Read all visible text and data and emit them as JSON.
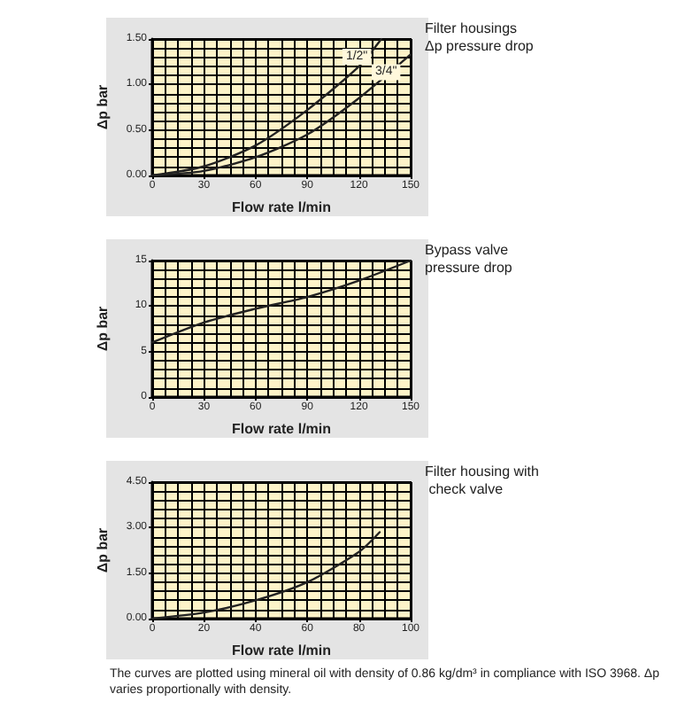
{
  "chart_data": [
    {
      "type": "line",
      "title": "Filter housings Δp pressure drop",
      "xlabel": "Flow rate l/min",
      "ylabel": "Δp bar",
      "x": [
        0,
        30,
        60,
        90,
        120,
        150
      ],
      "xlim": [
        0,
        150
      ],
      "xticks": [
        0,
        30,
        60,
        90,
        120,
        150
      ],
      "ylim": [
        0,
        1.5
      ],
      "yticks": [
        {
          "value": 0,
          "label": "0.00"
        },
        {
          "value": 0.5,
          "label": "0.50"
        },
        {
          "value": 1,
          "label": "1.00"
        },
        {
          "value": 1.5,
          "label": "1.50"
        }
      ],
      "grid": true,
      "legend": false,
      "marker": "none",
      "line_style": "solid",
      "series": [
        {
          "name": "1/2\"",
          "color": "#222222",
          "x": [
            0,
            30,
            60,
            90,
            120,
            133
          ],
          "values": [
            0,
            0.1,
            0.33,
            0.72,
            1.2,
            1.5
          ]
        },
        {
          "name": "3/4\"",
          "color": "#222222",
          "values": [
            0,
            0.05,
            0.2,
            0.45,
            0.85,
            1.33
          ]
        }
      ]
    },
    {
      "type": "line",
      "title": "Bypass valve pressure drop",
      "xlabel": "Flow rate l/min",
      "ylabel": "Δp bar",
      "x": [
        0,
        30,
        60,
        90,
        120,
        150
      ],
      "xlim": [
        0,
        150
      ],
      "xticks": [
        0,
        30,
        60,
        90,
        120,
        150
      ],
      "ylim": [
        0,
        15
      ],
      "yticks": [
        0,
        5,
        10,
        15
      ],
      "grid": true,
      "legend": false,
      "marker": "none",
      "line_style": "solid",
      "series": [
        {
          "color": "#222222",
          "values": [
            6,
            8.2,
            9.7,
            11,
            12.8,
            15
          ]
        }
      ]
    },
    {
      "type": "line",
      "title": "Filter housing with check valve",
      "xlabel": "Flow rate l/min",
      "ylabel": "Δp bar",
      "x": [
        0,
        20,
        40,
        60,
        80,
        88
      ],
      "xlim": [
        0,
        100
      ],
      "xticks": [
        0,
        20,
        40,
        60,
        80,
        100
      ],
      "ylim": [
        0,
        4.5
      ],
      "yticks": [
        {
          "value": 0,
          "label": "0.00"
        },
        {
          "value": 1.5,
          "label": "1.50"
        },
        {
          "value": 3,
          "label": "3.00"
        },
        {
          "value": 4.5,
          "label": "4.50"
        }
      ],
      "grid": true,
      "legend": false,
      "marker": "none",
      "line_style": "solid",
      "annotations": [
        "The curves are plotted using mineral oil with density of 0.86 kg/dm³ in compliance with ISO 3968. Δp varies proportionally with density."
      ],
      "series": [
        {
          "color": "#222222",
          "values": [
            0,
            0.2,
            0.6,
            1.2,
            2.2,
            2.85
          ]
        }
      ]
    }
  ]
}
